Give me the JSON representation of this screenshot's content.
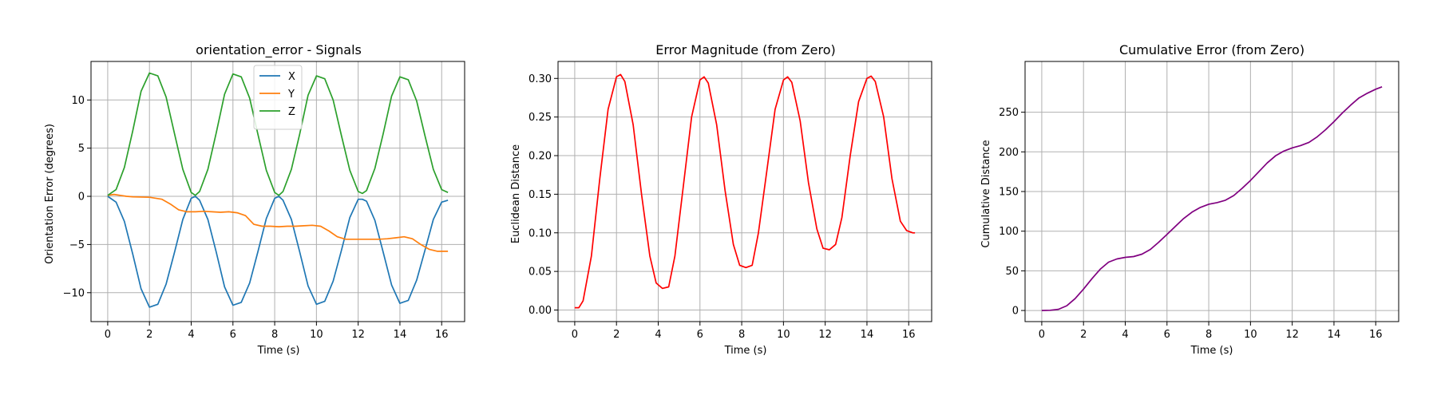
{
  "figure": {
    "charts": [
      {
        "title": "orientation_error - Signals",
        "xlabel": "Time (s)",
        "ylabel": "Orientation Error (degrees)"
      },
      {
        "title": "Error Magnitude (from Zero)",
        "xlabel": "Time (s)",
        "ylabel": "Euclidean Distance"
      },
      {
        "title": "Cumulative Error (from Zero)",
        "xlabel": "Time (s)",
        "ylabel": "Cumulative Distance"
      }
    ]
  },
  "chart_data": [
    {
      "type": "line",
      "title": "orientation_error - Signals",
      "xlabel": "Time (s)",
      "ylabel": "Orientation Error (degrees)",
      "xlim": [
        -0.8,
        17.1
      ],
      "ylim": [
        -13.0,
        14.0
      ],
      "xticks": [
        0,
        2,
        4,
        6,
        8,
        10,
        12,
        14,
        16
      ],
      "yticks": [
        -10,
        -5,
        0,
        5,
        10
      ],
      "grid": true,
      "legend": "top-center",
      "series": [
        {
          "name": "X",
          "color": "#1f77b4",
          "x": [
            0,
            0.4,
            0.8,
            1.2,
            1.6,
            2.0,
            2.4,
            2.8,
            3.2,
            3.6,
            4.0,
            4.2,
            4.4,
            4.8,
            5.2,
            5.6,
            6.0,
            6.4,
            6.8,
            7.2,
            7.6,
            8.0,
            8.2,
            8.4,
            8.8,
            9.2,
            9.6,
            10.0,
            10.4,
            10.8,
            11.2,
            11.6,
            12.0,
            12.2,
            12.4,
            12.8,
            13.2,
            13.6,
            14.0,
            14.4,
            14.8,
            15.2,
            15.6,
            16.0,
            16.3
          ],
          "y": [
            0,
            -0.6,
            -2.6,
            -6.0,
            -9.6,
            -11.5,
            -11.2,
            -9.1,
            -5.8,
            -2.4,
            -0.2,
            0,
            -0.4,
            -2.4,
            -5.8,
            -9.4,
            -11.3,
            -11.0,
            -9.0,
            -5.7,
            -2.3,
            -0.2,
            0,
            -0.4,
            -2.4,
            -5.8,
            -9.3,
            -11.2,
            -10.9,
            -8.8,
            -5.6,
            -2.2,
            -0.3,
            -0.3,
            -0.5,
            -2.5,
            -5.8,
            -9.2,
            -11.1,
            -10.8,
            -8.7,
            -5.6,
            -2.4,
            -0.6,
            -0.4
          ]
        },
        {
          "name": "Y",
          "color": "#ff7f0e",
          "x": [
            0,
            0.3,
            0.6,
            0.9,
            1.2,
            2.0,
            2.6,
            3.0,
            3.4,
            3.8,
            4.2,
            4.6,
            5.0,
            5.4,
            5.8,
            6.2,
            6.6,
            7.0,
            7.4,
            7.8,
            8.2,
            8.6,
            9.0,
            9.4,
            9.8,
            10.2,
            10.6,
            11.0,
            11.4,
            11.8,
            12.2,
            12.6,
            13.0,
            13.4,
            13.8,
            14.2,
            14.6,
            15.0,
            15.4,
            15.8,
            16.3
          ],
          "y": [
            0.1,
            0.2,
            0.1,
            0.0,
            -0.05,
            -0.1,
            -0.3,
            -0.8,
            -1.4,
            -1.6,
            -1.6,
            -1.55,
            -1.6,
            -1.65,
            -1.6,
            -1.7,
            -2.0,
            -2.9,
            -3.1,
            -3.1,
            -3.15,
            -3.1,
            -3.1,
            -3.05,
            -3.0,
            -3.1,
            -3.6,
            -4.2,
            -4.45,
            -4.45,
            -4.45,
            -4.45,
            -4.45,
            -4.4,
            -4.3,
            -4.2,
            -4.4,
            -5.0,
            -5.5,
            -5.7,
            -5.7
          ]
        },
        {
          "name": "Z",
          "color": "#2ca02c",
          "x": [
            0,
            0.4,
            0.8,
            1.2,
            1.6,
            2.0,
            2.4,
            2.8,
            3.2,
            3.6,
            4.0,
            4.2,
            4.4,
            4.8,
            5.2,
            5.6,
            6.0,
            6.4,
            6.8,
            7.2,
            7.6,
            8.0,
            8.2,
            8.4,
            8.8,
            9.2,
            9.6,
            10.0,
            10.4,
            10.8,
            11.2,
            11.6,
            12.0,
            12.2,
            12.4,
            12.8,
            13.2,
            13.6,
            14.0,
            14.4,
            14.8,
            15.2,
            15.6,
            16.0,
            16.3
          ],
          "y": [
            0.1,
            0.7,
            3.0,
            6.8,
            10.9,
            12.8,
            12.5,
            10.3,
            6.5,
            2.8,
            0.4,
            0.1,
            0.5,
            2.8,
            6.6,
            10.6,
            12.7,
            12.4,
            10.2,
            6.4,
            2.7,
            0.4,
            0.1,
            0.5,
            2.8,
            6.5,
            10.5,
            12.5,
            12.2,
            10.0,
            6.3,
            2.7,
            0.5,
            0.3,
            0.6,
            2.9,
            6.5,
            10.4,
            12.4,
            12.1,
            9.9,
            6.3,
            2.8,
            0.7,
            0.4
          ]
        }
      ]
    },
    {
      "type": "line",
      "title": "Error Magnitude (from Zero)",
      "xlabel": "Time (s)",
      "ylabel": "Euclidean Distance",
      "xlim": [
        -0.8,
        17.1
      ],
      "ylim": [
        -0.015,
        0.322
      ],
      "xticks": [
        0,
        2,
        4,
        6,
        8,
        10,
        12,
        14,
        16
      ],
      "yticks": [
        0.0,
        0.05,
        0.1,
        0.15,
        0.2,
        0.25,
        0.3
      ],
      "ytick_labels": [
        "0.00",
        "0.05",
        "0.10",
        "0.15",
        "0.20",
        "0.25",
        "0.30"
      ],
      "grid": true,
      "series": [
        {
          "color": "#ff0000",
          "x": [
            0,
            0.2,
            0.4,
            0.8,
            1.2,
            1.6,
            2.0,
            2.2,
            2.4,
            2.8,
            3.2,
            3.6,
            3.9,
            4.2,
            4.5,
            4.8,
            5.2,
            5.6,
            6.0,
            6.2,
            6.4,
            6.8,
            7.2,
            7.6,
            7.9,
            8.2,
            8.5,
            8.8,
            9.2,
            9.6,
            10.0,
            10.2,
            10.4,
            10.8,
            11.2,
            11.6,
            11.9,
            12.2,
            12.5,
            12.8,
            13.2,
            13.6,
            14.0,
            14.2,
            14.4,
            14.8,
            15.2,
            15.6,
            15.9,
            16.2,
            16.3
          ],
          "y": [
            0.003,
            0.003,
            0.012,
            0.07,
            0.17,
            0.26,
            0.302,
            0.305,
            0.296,
            0.24,
            0.15,
            0.07,
            0.035,
            0.028,
            0.03,
            0.07,
            0.16,
            0.25,
            0.298,
            0.302,
            0.294,
            0.24,
            0.155,
            0.085,
            0.058,
            0.055,
            0.058,
            0.1,
            0.18,
            0.26,
            0.298,
            0.302,
            0.295,
            0.245,
            0.165,
            0.105,
            0.08,
            0.078,
            0.085,
            0.12,
            0.2,
            0.27,
            0.3,
            0.303,
            0.296,
            0.25,
            0.17,
            0.115,
            0.103,
            0.1,
            0.1
          ]
        }
      ]
    },
    {
      "type": "line",
      "title": "Cumulative Error (from Zero)",
      "xlabel": "Time (s)",
      "ylabel": "Cumulative Distance",
      "xlim": [
        -0.8,
        17.1
      ],
      "ylim": [
        -14,
        314
      ],
      "xticks": [
        0,
        2,
        4,
        6,
        8,
        10,
        12,
        14,
        16
      ],
      "yticks": [
        0,
        50,
        100,
        150,
        200,
        250
      ],
      "grid": true,
      "series": [
        {
          "color": "#800080",
          "x": [
            0,
            0.4,
            0.8,
            1.2,
            1.6,
            2.0,
            2.4,
            2.8,
            3.2,
            3.6,
            4.0,
            4.4,
            4.8,
            5.2,
            5.6,
            6.0,
            6.4,
            6.8,
            7.2,
            7.6,
            8.0,
            8.4,
            8.8,
            9.2,
            9.6,
            10.0,
            10.4,
            10.8,
            11.2,
            11.6,
            12.0,
            12.4,
            12.8,
            13.2,
            13.6,
            14.0,
            14.4,
            14.8,
            15.2,
            15.6,
            16.0,
            16.3
          ],
          "y": [
            0,
            0.3,
            1.5,
            6,
            15,
            27,
            40,
            52,
            61,
            65,
            67,
            68,
            71,
            77,
            86,
            96,
            106,
            116,
            124,
            130,
            134,
            136,
            139,
            145,
            154,
            164,
            175,
            186,
            195,
            201,
            205,
            208,
            212,
            219,
            228,
            238,
            249,
            259,
            268,
            274,
            279,
            282
          ]
        }
      ]
    }
  ]
}
